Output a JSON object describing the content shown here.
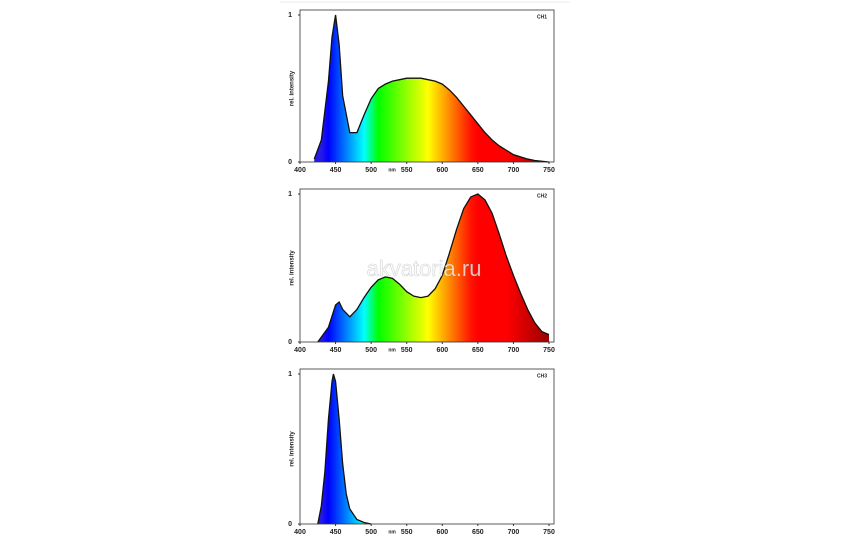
{
  "watermark": "akvatoria.ru",
  "chart_data": [
    {
      "type": "area",
      "title": "CH1",
      "x_label": "nm",
      "y_label": "rel. intensity",
      "x": [
        420,
        430,
        440,
        445,
        450,
        455,
        460,
        470,
        480,
        490,
        500,
        510,
        520,
        530,
        540,
        550,
        560,
        570,
        580,
        590,
        600,
        610,
        620,
        630,
        640,
        650,
        660,
        670,
        680,
        690,
        700,
        710,
        720,
        730,
        740,
        750
      ],
      "values": [
        0.02,
        0.15,
        0.55,
        0.85,
        1.0,
        0.8,
        0.45,
        0.2,
        0.2,
        0.32,
        0.43,
        0.5,
        0.53,
        0.55,
        0.56,
        0.57,
        0.57,
        0.57,
        0.56,
        0.55,
        0.53,
        0.49,
        0.44,
        0.38,
        0.32,
        0.26,
        0.2,
        0.15,
        0.11,
        0.08,
        0.05,
        0.035,
        0.02,
        0.01,
        0.005,
        0
      ],
      "xlim": [
        400,
        750
      ],
      "ylim": [
        0,
        1
      ],
      "xticks": [
        400,
        450,
        500,
        550,
        600,
        650,
        700,
        750
      ],
      "yticks": [
        0,
        1
      ]
    },
    {
      "type": "area",
      "title": "CH2",
      "x_label": "nm",
      "y_label": "rel. intensity",
      "x": [
        425,
        440,
        450,
        455,
        460,
        470,
        480,
        490,
        500,
        510,
        520,
        530,
        540,
        550,
        560,
        570,
        580,
        590,
        600,
        610,
        620,
        630,
        640,
        650,
        660,
        670,
        680,
        690,
        700,
        710,
        720,
        730,
        740,
        750
      ],
      "values": [
        0,
        0.1,
        0.25,
        0.27,
        0.22,
        0.17,
        0.22,
        0.3,
        0.37,
        0.42,
        0.44,
        0.43,
        0.39,
        0.34,
        0.31,
        0.3,
        0.31,
        0.36,
        0.45,
        0.6,
        0.76,
        0.9,
        0.98,
        1.0,
        0.96,
        0.87,
        0.73,
        0.58,
        0.45,
        0.33,
        0.22,
        0.13,
        0.07,
        0.05
      ],
      "xlim": [
        400,
        750
      ],
      "ylim": [
        0,
        1
      ],
      "xticks": [
        400,
        450,
        500,
        550,
        600,
        650,
        700,
        750
      ],
      "yticks": [
        0,
        1
      ]
    },
    {
      "type": "area",
      "title": "CH3",
      "x_label": "nm",
      "y_label": "rel. intensity",
      "x": [
        425,
        430,
        435,
        440,
        445,
        447,
        450,
        455,
        460,
        465,
        470,
        480,
        490,
        500
      ],
      "values": [
        0,
        0.12,
        0.35,
        0.7,
        0.95,
        1.0,
        0.95,
        0.7,
        0.4,
        0.2,
        0.1,
        0.03,
        0.01,
        0
      ],
      "xlim": [
        400,
        750
      ],
      "ylim": [
        0,
        1
      ],
      "xticks": [
        400,
        450,
        500,
        550,
        600,
        650,
        700,
        750
      ],
      "yticks": [
        0,
        1
      ]
    }
  ]
}
